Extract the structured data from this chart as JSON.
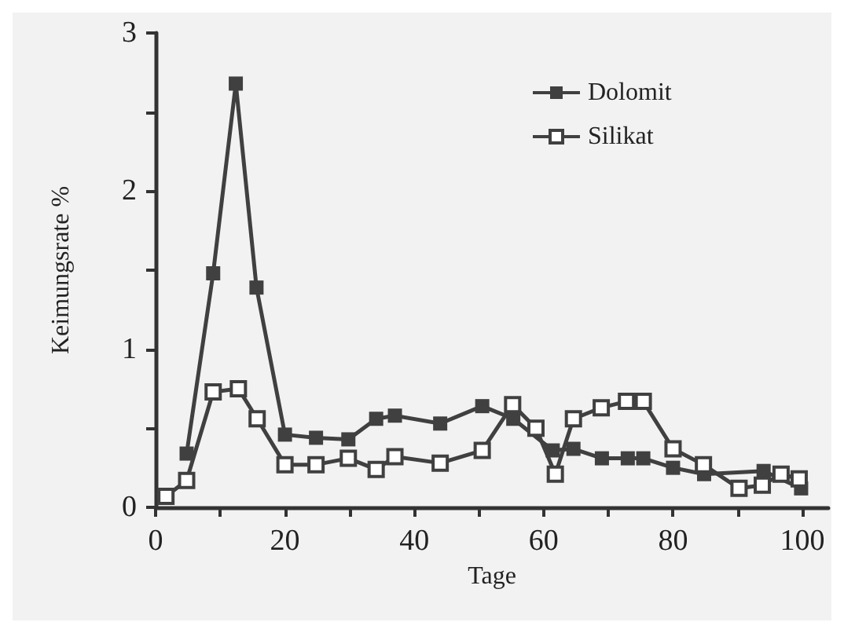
{
  "chart_data": {
    "type": "line",
    "xlabel": "Tage",
    "ylabel": "Keimungsrate %",
    "xlim": [
      0,
      104
    ],
    "xticks": [
      0,
      {
        "value": 10,
        "label": null
      },
      20,
      {
        "value": 30,
        "label": null
      },
      40,
      {
        "value": 50,
        "label": null
      },
      60,
      {
        "value": 70,
        "label": null
      },
      80,
      {
        "value": 90,
        "label": null
      },
      100
    ],
    "ylim": [
      0,
      3
    ],
    "yticks": [
      0,
      {
        "value": 0.5,
        "label": null
      },
      1,
      {
        "value": 1.5,
        "label": null
      },
      2,
      {
        "value": 2.5,
        "label": null
      },
      3
    ],
    "grid": false,
    "legend": "top right",
    "marker": "square",
    "line_style": "solid",
    "series": [
      {
        "name": "Dolomit",
        "color": "#404040",
        "x": [
          4.8,
          8.9,
          12.4,
          15.6,
          20,
          24.8,
          29.8,
          34.1,
          37,
          44,
          50.5,
          55.3,
          61.4,
          64.6,
          69,
          73,
          75.4,
          80,
          84.8,
          94,
          99.8
        ],
        "values": [
          0.34,
          1.48,
          2.68,
          1.39,
          0.46,
          0.44,
          0.43,
          0.56,
          0.58,
          0.53,
          0.64,
          0.56,
          0.36,
          0.37,
          0.31,
          0.31,
          0.31,
          0.25,
          0.21,
          0.23,
          0.12
        ]
      },
      {
        "name": "Silikat",
        "color": "#404040",
        "x": [
          1.6,
          4.8,
          8.9,
          12.8,
          15.7,
          20,
          24.8,
          29.8,
          34.1,
          37,
          44,
          50.5,
          55.2,
          58.8,
          61.8,
          64.6,
          68.9,
          72.8,
          75.4,
          80,
          84.7,
          90.2,
          93.8,
          96.7,
          99.5
        ],
        "values": [
          0.07,
          0.17,
          0.73,
          0.75,
          0.56,
          0.27,
          0.27,
          0.31,
          0.24,
          0.32,
          0.28,
          0.36,
          0.65,
          0.5,
          0.21,
          0.56,
          0.63,
          0.67,
          0.67,
          0.37,
          0.27,
          0.12,
          0.14,
          0.21,
          0.18
        ]
      }
    ]
  }
}
